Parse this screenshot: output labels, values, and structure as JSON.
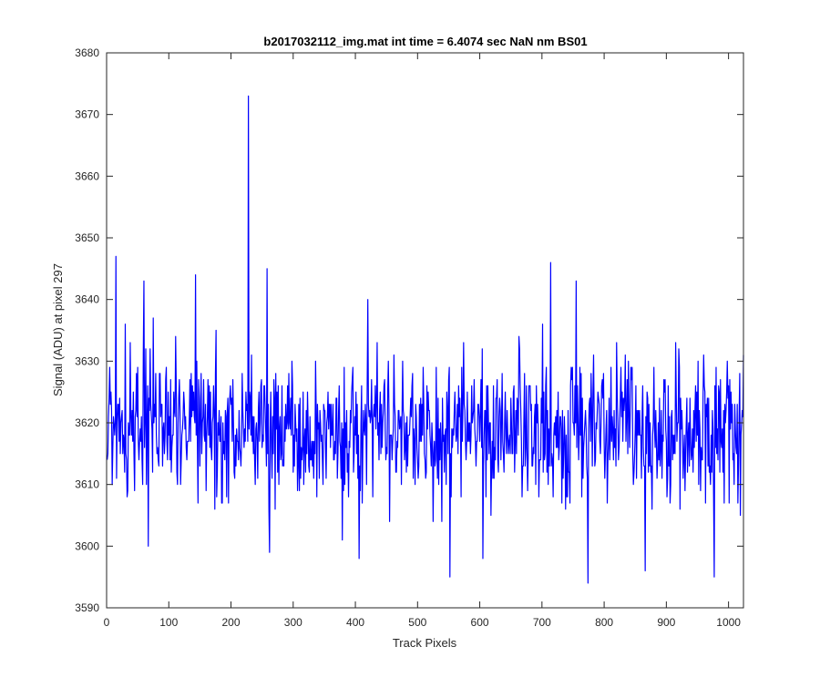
{
  "chart_data": {
    "type": "line",
    "title": "b2017032112_img.mat int time = 6.4074 sec  NaN nm BS01",
    "xlabel": "Track Pixels",
    "ylabel": "Signal (ADU) at pixel 297",
    "xlim": [
      0,
      1024
    ],
    "ylim": [
      3590,
      3680
    ],
    "xticks": [
      0,
      100,
      200,
      300,
      400,
      500,
      600,
      700,
      800,
      900,
      1000
    ],
    "yticks": [
      3590,
      3600,
      3610,
      3620,
      3630,
      3640,
      3650,
      3660,
      3670,
      3680
    ],
    "grid": false,
    "legend": "none",
    "line_color": "#0000ff",
    "series": [
      {
        "x_start": 1,
        "x_step": 1,
        "n_points": 1024,
        "baseline": 3619,
        "noise_sd": 6,
        "peaks": [
          {
            "x": 15,
            "y": 3647
          },
          {
            "x": 60,
            "y": 3643
          },
          {
            "x": 143,
            "y": 3644
          },
          {
            "x": 228,
            "y": 3673
          },
          {
            "x": 258,
            "y": 3645
          },
          {
            "x": 420,
            "y": 3640
          },
          {
            "x": 714,
            "y": 3646
          },
          {
            "x": 755,
            "y": 3643
          }
        ],
        "troughs": [
          {
            "x": 67,
            "y": 3600
          },
          {
            "x": 262,
            "y": 3599
          },
          {
            "x": 406,
            "y": 3598
          },
          {
            "x": 552,
            "y": 3595
          },
          {
            "x": 605,
            "y": 3598
          },
          {
            "x": 774,
            "y": 3594
          },
          {
            "x": 866,
            "y": 3596
          },
          {
            "x": 977,
            "y": 3595
          }
        ]
      }
    ]
  }
}
